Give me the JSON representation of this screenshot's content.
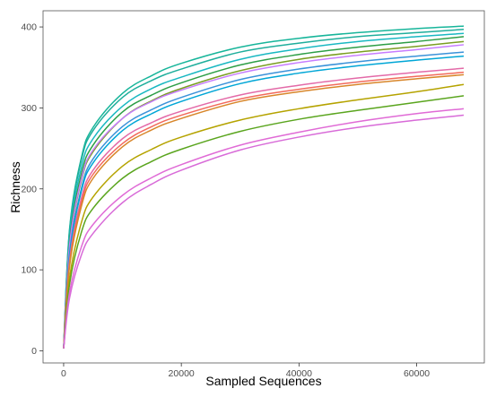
{
  "chart_data": {
    "type": "line",
    "title": "",
    "xlabel": "Sampled Sequences",
    "ylabel": "Richness",
    "xlim": [
      -3500,
      71500
    ],
    "ylim": [
      -15,
      420
    ],
    "xticks": [
      0,
      20000,
      40000,
      60000
    ],
    "yticks": [
      0,
      100,
      200,
      300,
      400
    ],
    "xtick_labels": [
      "0",
      "20000",
      "40000",
      "60000"
    ],
    "ytick_labels": [
      "0",
      "100",
      "200",
      "300",
      "400"
    ],
    "grid": false,
    "legend": "none",
    "series": [
      {
        "color": "#17b59a",
        "x": [
          0,
          1000,
          3000,
          5000,
          10000,
          15000,
          20000,
          30000,
          40000,
          50000,
          60000,
          68000
        ],
        "y": [
          3,
          150,
          238,
          276,
          318,
          340,
          355,
          375,
          386,
          393,
          398,
          401
        ]
      },
      {
        "color": "#1fae9c",
        "x": [
          0,
          1000,
          3000,
          5000,
          10000,
          15000,
          20000,
          30000,
          40000,
          50000,
          60000,
          68000
        ],
        "y": [
          3,
          148,
          235,
          272,
          313,
          334,
          348,
          369,
          380,
          388,
          393,
          397
        ]
      },
      {
        "color": "#19b8c2",
        "x": [
          0,
          1000,
          3000,
          5000,
          10000,
          15000,
          20000,
          30000,
          40000,
          50000,
          60000,
          68000
        ],
        "y": [
          3,
          142,
          226,
          262,
          302,
          324,
          338,
          360,
          373,
          382,
          388,
          392
        ]
      },
      {
        "color": "#2d9e46",
        "x": [
          0,
          1000,
          3000,
          5000,
          10000,
          15000,
          20000,
          30000,
          40000,
          50000,
          60000,
          68000
        ],
        "y": [
          3,
          135,
          218,
          254,
          295,
          316,
          331,
          353,
          366,
          375,
          382,
          388
        ]
      },
      {
        "color": "#7a9e22",
        "x": [
          0,
          1000,
          3000,
          5000,
          10000,
          15000,
          20000,
          30000,
          40000,
          50000,
          60000,
          68000
        ],
        "y": [
          3,
          128,
          210,
          246,
          287,
          309,
          324,
          346,
          360,
          369,
          376,
          382
        ]
      },
      {
        "color": "#c77cff",
        "x": [
          0,
          1000,
          3000,
          5000,
          10000,
          15000,
          20000,
          30000,
          40000,
          50000,
          60000,
          68000
        ],
        "y": [
          3,
          130,
          212,
          248,
          287,
          308,
          322,
          343,
          356,
          365,
          372,
          378
        ]
      },
      {
        "color": "#3a92d9",
        "x": [
          0,
          1000,
          3000,
          5000,
          10000,
          15000,
          20000,
          30000,
          40000,
          50000,
          60000,
          68000
        ],
        "y": [
          3,
          120,
          200,
          237,
          277,
          298,
          313,
          335,
          348,
          357,
          364,
          369
        ]
      },
      {
        "color": "#00a6d6",
        "x": [
          0,
          1000,
          3000,
          5000,
          10000,
          15000,
          20000,
          30000,
          40000,
          50000,
          60000,
          68000
        ],
        "y": [
          3,
          118,
          197,
          232,
          272,
          293,
          308,
          330,
          343,
          352,
          359,
          364
        ]
      },
      {
        "color": "#e36aa8",
        "x": [
          0,
          1000,
          3000,
          5000,
          10000,
          15000,
          20000,
          30000,
          40000,
          50000,
          60000,
          68000
        ],
        "y": [
          3,
          112,
          188,
          223,
          262,
          282,
          296,
          316,
          328,
          337,
          344,
          349
        ]
      },
      {
        "color": "#f26a5c",
        "x": [
          0,
          1000,
          3000,
          5000,
          10000,
          15000,
          20000,
          30000,
          40000,
          50000,
          60000,
          68000
        ],
        "y": [
          3,
          108,
          183,
          218,
          256,
          277,
          291,
          311,
          323,
          332,
          339,
          344
        ]
      },
      {
        "color": "#d8862a",
        "x": [
          0,
          1000,
          3000,
          5000,
          10000,
          15000,
          20000,
          30000,
          40000,
          50000,
          60000,
          68000
        ],
        "y": [
          3,
          104,
          178,
          213,
          252,
          273,
          287,
          308,
          320,
          329,
          336,
          341
        ]
      },
      {
        "color": "#b5a300",
        "x": [
          0,
          1000,
          3000,
          5000,
          10000,
          15000,
          20000,
          30000,
          40000,
          50000,
          60000,
          68000
        ],
        "y": [
          3,
          90,
          158,
          190,
          228,
          249,
          264,
          285,
          299,
          310,
          320,
          329
        ]
      },
      {
        "color": "#5aa51e",
        "x": [
          0,
          1000,
          3000,
          5000,
          10000,
          15000,
          20000,
          30000,
          40000,
          50000,
          60000,
          68000
        ],
        "y": [
          3,
          82,
          146,
          176,
          213,
          234,
          249,
          271,
          286,
          297,
          307,
          315
        ]
      },
      {
        "color": "#e06bd6",
        "x": [
          0,
          1000,
          3000,
          5000,
          10000,
          15000,
          20000,
          30000,
          40000,
          50000,
          60000,
          68000
        ],
        "y": [
          3,
          72,
          128,
          156,
          192,
          214,
          230,
          254,
          270,
          283,
          293,
          299
        ]
      },
      {
        "color": "#d86bd8",
        "x": [
          0,
          1000,
          3000,
          5000,
          10000,
          15000,
          20000,
          30000,
          40000,
          50000,
          60000,
          68000
        ],
        "y": [
          3,
          65,
          118,
          145,
          183,
          206,
          223,
          248,
          264,
          276,
          285,
          291
        ]
      }
    ]
  }
}
